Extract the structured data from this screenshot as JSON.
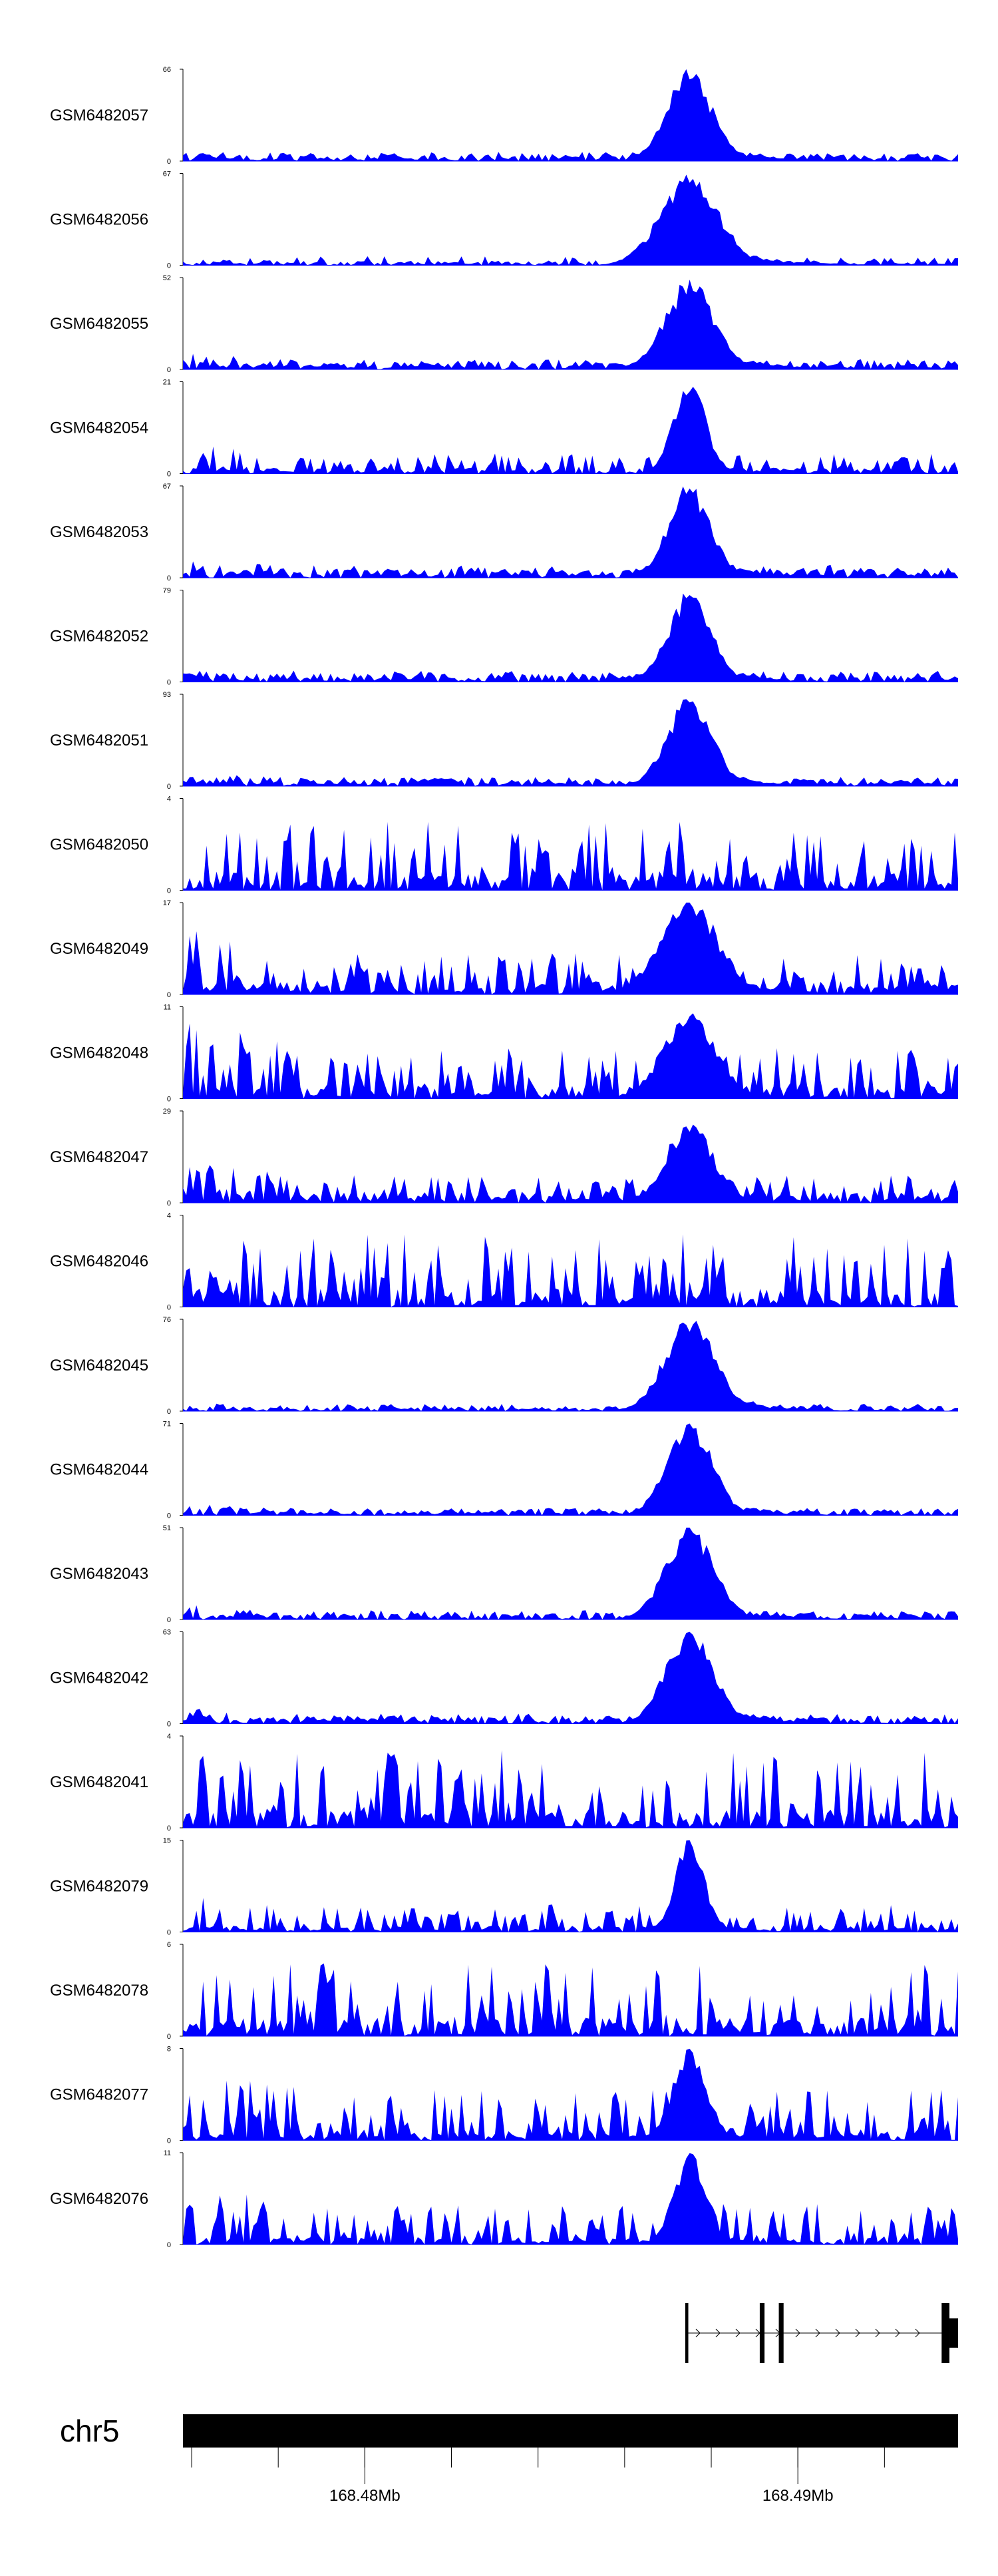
{
  "chart_data": {
    "type": "area",
    "title": "",
    "chromosome": "chr5",
    "x_range_mb": [
      168.4758,
      168.4937
    ],
    "x_ticks_mb": [
      168.48,
      168.49
    ],
    "x_tick_labels": [
      "168.48Mb",
      "168.49Mb"
    ],
    "peak_center_mb": 168.4875,
    "tracks": [
      {
        "name": "GSM6482057",
        "ymax": 66,
        "kind": "peak",
        "seed": 11,
        "peakH": 1.0,
        "peakW": 0.55,
        "bg": 0.09,
        "lowDens": 0.1
      },
      {
        "name": "GSM6482056",
        "ymax": 67,
        "kind": "peak",
        "seed": 12,
        "peakH": 0.95,
        "peakW": 0.8,
        "bg": 0.05,
        "lowDens": 0.1
      },
      {
        "name": "GSM6482055",
        "ymax": 52,
        "kind": "peak",
        "seed": 13,
        "peakH": 0.95,
        "peakW": 0.65,
        "bg": 0.11,
        "lowDens": 0.1
      },
      {
        "name": "GSM6482054",
        "ymax": 21,
        "kind": "peak",
        "seed": 14,
        "peakH": 1.0,
        "peakW": 0.3,
        "bg": 0.22,
        "lowDens": 0.06
      },
      {
        "name": "GSM6482053",
        "ymax": 67,
        "kind": "peak",
        "seed": 15,
        "peakH": 1.0,
        "peakW": 0.5,
        "bg": 0.14,
        "lowDens": 0.1
      },
      {
        "name": "GSM6482052",
        "ymax": 79,
        "kind": "peak",
        "seed": 16,
        "peakH": 0.98,
        "peakW": 0.5,
        "bg": 0.12,
        "lowDens": 0.1
      },
      {
        "name": "GSM6482051",
        "ymax": 93,
        "kind": "peak",
        "seed": 17,
        "peakH": 0.95,
        "peakW": 0.55,
        "bg": 0.1,
        "lowDens": 0.1
      },
      {
        "name": "GSM6482050",
        "ymax": 4,
        "kind": "noise",
        "seed": 18,
        "peakH": 0.5,
        "peakW": 0.3,
        "bg": 0.75,
        "lowDens": 0.08
      },
      {
        "name": "GSM6482049",
        "ymax": 17,
        "kind": "peak",
        "seed": 19,
        "peakH": 1.0,
        "peakW": 0.8,
        "bg": 0.45,
        "lowDens": 0.14
      },
      {
        "name": "GSM6482048",
        "ymax": 11,
        "kind": "peak",
        "seed": 20,
        "peakH": 0.9,
        "peakW": 0.7,
        "bg": 0.55,
        "lowDens": 0.14
      },
      {
        "name": "GSM6482047",
        "ymax": 29,
        "kind": "peak",
        "seed": 21,
        "peakH": 0.9,
        "peakW": 0.55,
        "bg": 0.3,
        "lowDens": 0.12
      },
      {
        "name": "GSM6482046",
        "ymax": 4,
        "kind": "noise",
        "seed": 22,
        "peakH": 0.5,
        "peakW": 0.3,
        "bg": 0.8,
        "lowDens": 0.09
      },
      {
        "name": "GSM6482045",
        "ymax": 76,
        "kind": "peak",
        "seed": 23,
        "peakH": 1.0,
        "peakW": 0.65,
        "bg": 0.06,
        "lowDens": 0.08
      },
      {
        "name": "GSM6482044",
        "ymax": 71,
        "kind": "peak",
        "seed": 24,
        "peakH": 1.0,
        "peakW": 0.55,
        "bg": 0.08,
        "lowDens": 0.08
      },
      {
        "name": "GSM6482043",
        "ymax": 51,
        "kind": "peak",
        "seed": 25,
        "peakH": 1.0,
        "peakW": 0.6,
        "bg": 0.1,
        "lowDens": 0.09
      },
      {
        "name": "GSM6482042",
        "ymax": 63,
        "kind": "peak",
        "seed": 26,
        "peakH": 1.0,
        "peakW": 0.6,
        "bg": 0.11,
        "lowDens": 0.09
      },
      {
        "name": "GSM6482041",
        "ymax": 4,
        "kind": "noise",
        "seed": 27,
        "peakH": 0.5,
        "peakW": 0.3,
        "bg": 0.85,
        "lowDens": 0.1
      },
      {
        "name": "GSM6482079",
        "ymax": 15,
        "kind": "peak",
        "seed": 28,
        "peakH": 1.0,
        "peakW": 0.25,
        "bg": 0.3,
        "lowDens": 0.07
      },
      {
        "name": "GSM6482078",
        "ymax": 6,
        "kind": "noise",
        "seed": 29,
        "peakH": 0.6,
        "peakW": 0.3,
        "bg": 0.8,
        "lowDens": 0.1
      },
      {
        "name": "GSM6482077",
        "ymax": 8,
        "kind": "peak",
        "seed": 30,
        "peakH": 0.95,
        "peakW": 0.35,
        "bg": 0.55,
        "lowDens": 0.08
      },
      {
        "name": "GSM6482076",
        "ymax": 11,
        "kind": "peak",
        "seed": 31,
        "peakH": 1.0,
        "peakW": 0.3,
        "bg": 0.45,
        "lowDens": 0.08
      }
    ],
    "gene": {
      "strand": "+",
      "start_mb": 168.4874,
      "end_mb": 168.4937,
      "exons_mb": [
        [
          168.4874,
          168.48747
        ],
        [
          168.48912,
          168.48923
        ],
        [
          168.48956,
          168.48967
        ],
        [
          168.49332,
          168.4935
        ],
        [
          168.4935,
          168.4937
        ]
      ]
    },
    "colors": {
      "signal": "#0000ff",
      "axis": "#000000",
      "ideogram": "#000000"
    }
  }
}
